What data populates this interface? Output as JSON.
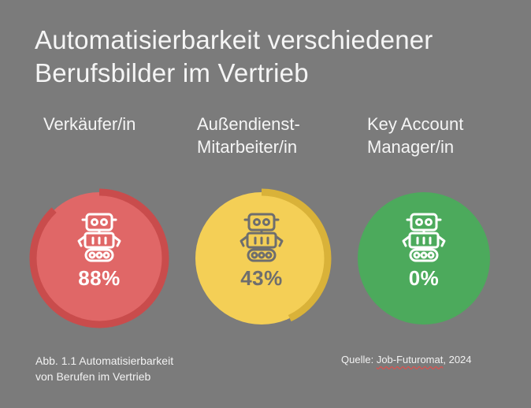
{
  "title": {
    "line1": "Automatisierbarkeit verschiedener",
    "line2": "Berufsbilder im Vertrieb"
  },
  "professions": [
    {
      "label_line1": "Verkäufer/in",
      "label_line2": "",
      "value_label": "88%",
      "automatable_share": 0.88,
      "fill_color": "#e06767",
      "ring_color": "#c94c4c",
      "text_color": "#ffffff"
    },
    {
      "label_line1": "Außendienst-",
      "label_line2": "Mitarbeiter/in",
      "value_label": "43%",
      "automatable_share": 0.43,
      "fill_color": "#f4cf56",
      "ring_color": "#d9b239",
      "text_color": "#6e6e6e"
    },
    {
      "label_line1": "Key Account",
      "label_line2": "Manager/in",
      "value_label": "0%",
      "automatable_share": 0.0,
      "fill_color": "#4caa5c",
      "ring_color": "#3f9750",
      "text_color": "#ffffff"
    }
  ],
  "icon": "robot-icon",
  "caption": {
    "line1": "Abb. 1.1 Automatisierbarkeit",
    "line2": "von Berufen im Vertrieb"
  },
  "source": {
    "prefix": "Quelle: ",
    "name": "Job-Futuromat",
    "suffix": ", 2024"
  }
}
